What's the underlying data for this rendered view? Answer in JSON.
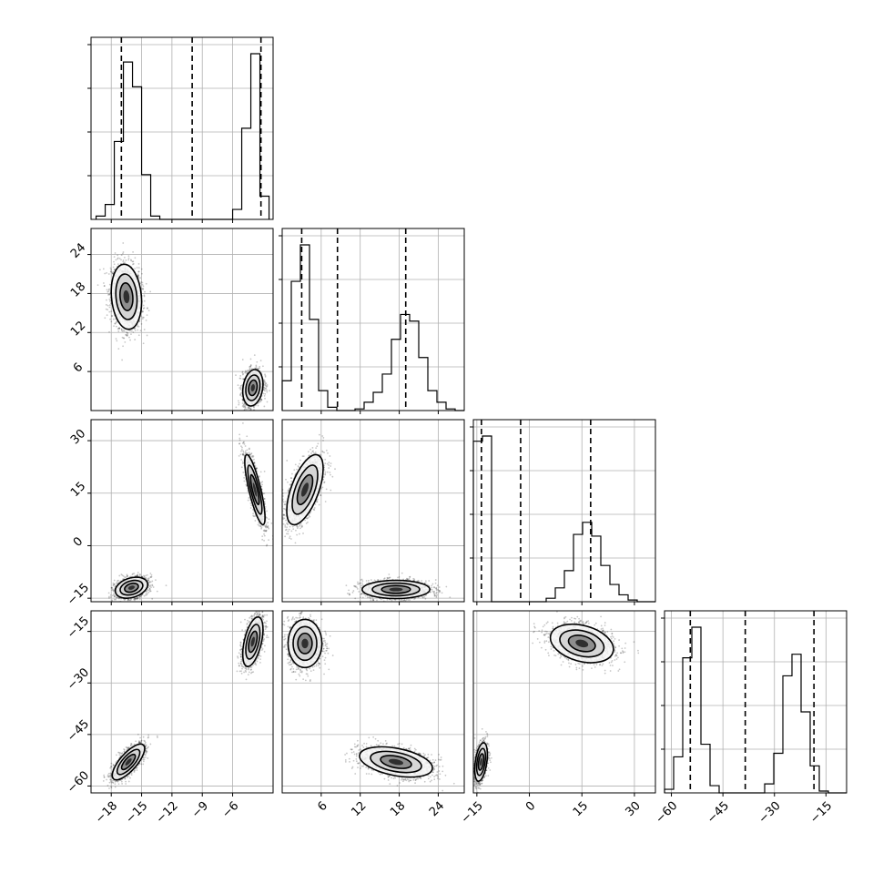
{
  "chart_data": {
    "type": "corner",
    "grid": true,
    "params": [
      {
        "ticks": [
          "−18",
          "−15",
          "−12",
          "−9",
          "−6"
        ],
        "range": [
          -20.0,
          -2.0
        ],
        "quantiles": [
          -17.0,
          -10.0,
          -3.2
        ],
        "hist_bins": [
          -19.5,
          -18.6,
          -17.7,
          -16.8,
          -15.9,
          -15.0,
          -14.1,
          -13.2,
          -12.3,
          -11.4,
          -10.5,
          -9.6,
          -8.7,
          -7.8,
          -6.9,
          -6.0,
          -5.1,
          -4.2,
          -3.3,
          -2.4
        ],
        "hist_counts": [
          0.02,
          0.09,
          0.47,
          0.95,
          0.8,
          0.27,
          0.02,
          0,
          0,
          0,
          0,
          0,
          0,
          0,
          0,
          0.06,
          0.55,
          1.0,
          0.14
        ]
      },
      {
        "ticks": [
          "6",
          "12",
          "18",
          "24"
        ],
        "range": [
          0.0,
          28.0
        ],
        "quantiles": [
          3.0,
          8.5,
          19.0
        ],
        "hist_bins": [
          0,
          1.4,
          2.8,
          4.2,
          5.6,
          7.0,
          8.4,
          9.8,
          11.2,
          12.6,
          14.0,
          15.4,
          16.8,
          18.2,
          19.6,
          21.0,
          22.4,
          23.8,
          25.2,
          26.6,
          28.0
        ],
        "hist_counts": [
          0.18,
          0.78,
          1.0,
          0.55,
          0.12,
          0.02,
          0,
          0,
          0.01,
          0.05,
          0.11,
          0.22,
          0.43,
          0.58,
          0.54,
          0.32,
          0.12,
          0.05,
          0.01,
          0
        ]
      },
      {
        "ticks": [
          "−15",
          "0",
          "15",
          "30"
        ],
        "range": [
          -16.0,
          36.0
        ],
        "quantiles": [
          -13.7,
          -2.5,
          17.5
        ],
        "hist_bins": [
          -16.0,
          -13.4,
          -10.8,
          -8.2,
          -5.6,
          -3.0,
          -0.4,
          2.2,
          4.8,
          7.4,
          10.0,
          12.6,
          15.2,
          17.8,
          20.4,
          23.0,
          25.6,
          28.2,
          30.8,
          33.4,
          36.0
        ],
        "hist_counts": [
          0.93,
          0.96,
          0,
          0,
          0,
          0,
          0,
          0,
          0.02,
          0.08,
          0.18,
          0.39,
          0.46,
          0.38,
          0.21,
          0.1,
          0.04,
          0.01,
          0,
          0
        ]
      },
      {
        "ticks": [
          "−60",
          "−45",
          "−30",
          "−15"
        ],
        "range": [
          -62.0,
          -9.0
        ],
        "quantiles": [
          -54.5,
          -38.5,
          -18.5
        ],
        "hist_bins": [
          -62.0,
          -59.35,
          -56.7,
          -54.05,
          -51.4,
          -48.75,
          -46.1,
          -43.45,
          -40.8,
          -38.15,
          -35.5,
          -32.85,
          -30.2,
          -27.55,
          -24.9,
          -22.25,
          -19.6,
          -16.95,
          -14.3,
          -11.65,
          -9.0
        ],
        "hist_counts": [
          0.02,
          0.2,
          0.75,
          0.92,
          0.27,
          0.04,
          0,
          0,
          0,
          0,
          0,
          0.05,
          0.22,
          0.65,
          0.77,
          0.45,
          0.15,
          0.01,
          0,
          0
        ]
      }
    ],
    "pairs": [
      {
        "row": 1,
        "col": 0,
        "modes": [
          {
            "x": -16.5,
            "y": 17.5,
            "sx": 0.75,
            "sy": 2.5,
            "rho": -0.15,
            "n": 1500
          },
          {
            "x": -4.0,
            "y": 3.5,
            "sx": 0.5,
            "sy": 1.4,
            "rho": 0.2,
            "n": 1500
          }
        ]
      },
      {
        "row": 2,
        "col": 0,
        "modes": [
          {
            "x": -16.0,
            "y": -12.0,
            "sx": 0.8,
            "sy": 1.5,
            "rho": 0.3,
            "n": 1500
          },
          {
            "x": -3.8,
            "y": 16.0,
            "sx": 0.5,
            "sy": 5.0,
            "rho": -0.8,
            "n": 1500
          }
        ]
      },
      {
        "row": 2,
        "col": 1,
        "modes": [
          {
            "x": 3.5,
            "y": 16.0,
            "sx": 1.4,
            "sy": 5.0,
            "rho": 0.6,
            "n": 1500
          },
          {
            "x": 17.5,
            "y": -12.5,
            "sx": 2.6,
            "sy": 1.3,
            "rho": 0.0,
            "n": 1500
          }
        ]
      },
      {
        "row": 3,
        "col": 0,
        "modes": [
          {
            "x": -16.3,
            "y": -53.0,
            "sx": 0.8,
            "sy": 2.6,
            "rho": 0.75,
            "n": 1500
          },
          {
            "x": -4.0,
            "y": -18.0,
            "sx": 0.5,
            "sy": 3.6,
            "rho": 0.5,
            "n": 1500
          }
        ]
      },
      {
        "row": 3,
        "col": 1,
        "modes": [
          {
            "x": 3.5,
            "y": -18.5,
            "sx": 1.3,
            "sy": 3.5,
            "rho": 0.0,
            "n": 1500
          },
          {
            "x": 17.5,
            "y": -53.0,
            "sx": 2.8,
            "sy": 2.2,
            "rho": -0.4,
            "n": 1500
          }
        ]
      },
      {
        "row": 3,
        "col": 2,
        "modes": [
          {
            "x": 15.0,
            "y": -18.5,
            "sx": 4.5,
            "sy": 2.8,
            "rho": -0.3,
            "n": 1500
          },
          {
            "x": -13.8,
            "y": -53.0,
            "sx": 0.9,
            "sy": 2.8,
            "rho": 0.4,
            "n": 1500
          }
        ]
      }
    ]
  }
}
